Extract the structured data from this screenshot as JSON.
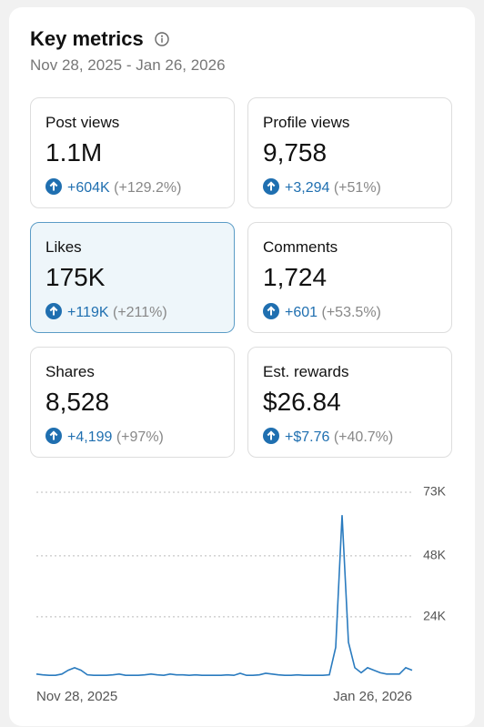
{
  "header": {
    "title": "Key metrics",
    "date_range": "Nov 28, 2025 - Jan 26, 2026"
  },
  "cards": [
    {
      "label": "Post views",
      "value": "1.1M",
      "change": "+604K",
      "pct": "(+129.2%)"
    },
    {
      "label": "Profile views",
      "value": "9,758",
      "change": "+3,294",
      "pct": "(+51%)"
    },
    {
      "label": "Likes",
      "value": "175K",
      "change": "+119K",
      "pct": "(+211%)"
    },
    {
      "label": "Comments",
      "value": "1,724",
      "change": "+601",
      "pct": "(+53.5%)"
    },
    {
      "label": "Shares",
      "value": "8,528",
      "change": "+4,199",
      "pct": "(+97%)"
    },
    {
      "label": "Est. rewards",
      "value": "$26.84",
      "change": "+$7.76",
      "pct": "(+40.7%)"
    }
  ],
  "chart_data": {
    "type": "line",
    "categories": [
      "Nov 28, 2025",
      null,
      null,
      null,
      null,
      null,
      null,
      null,
      null,
      null,
      null,
      null,
      null,
      null,
      null,
      null,
      null,
      null,
      null,
      null,
      null,
      null,
      null,
      null,
      null,
      null,
      null,
      null,
      null,
      null,
      null,
      null,
      null,
      null,
      null,
      null,
      null,
      null,
      null,
      null,
      null,
      null,
      null,
      null,
      null,
      null,
      null,
      null,
      null,
      null,
      null,
      null,
      null,
      null,
      null,
      null,
      null,
      null,
      null,
      "Jan 26, 2026"
    ],
    "series": [
      {
        "color": "#2a7bbf",
        "values": [
          1500,
          1200,
          1000,
          1000,
          1500,
          3000,
          4000,
          3000,
          1200,
          1000,
          1000,
          1000,
          1200,
          1500,
          1000,
          1000,
          1000,
          1200,
          1500,
          1200,
          1000,
          1500,
          1200,
          1200,
          1000,
          1200,
          1000,
          1000,
          1000,
          1000,
          1200,
          1000,
          1800,
          1000,
          1000,
          1200,
          1800,
          1500,
          1200,
          1000,
          1000,
          1200,
          1000,
          1000,
          1000,
          1000,
          1200,
          12000,
          64000,
          14000,
          4000,
          2000,
          4000,
          3000,
          2000,
          1500,
          1500,
          1500,
          4000,
          3000
        ]
      }
    ],
    "ylim": [
      0,
      73000
    ],
    "yticks": [
      {
        "value": 24000,
        "label": "24K"
      },
      {
        "value": 48000,
        "label": "48K"
      },
      {
        "value": 73000,
        "label": "73K"
      }
    ],
    "grid": true
  }
}
